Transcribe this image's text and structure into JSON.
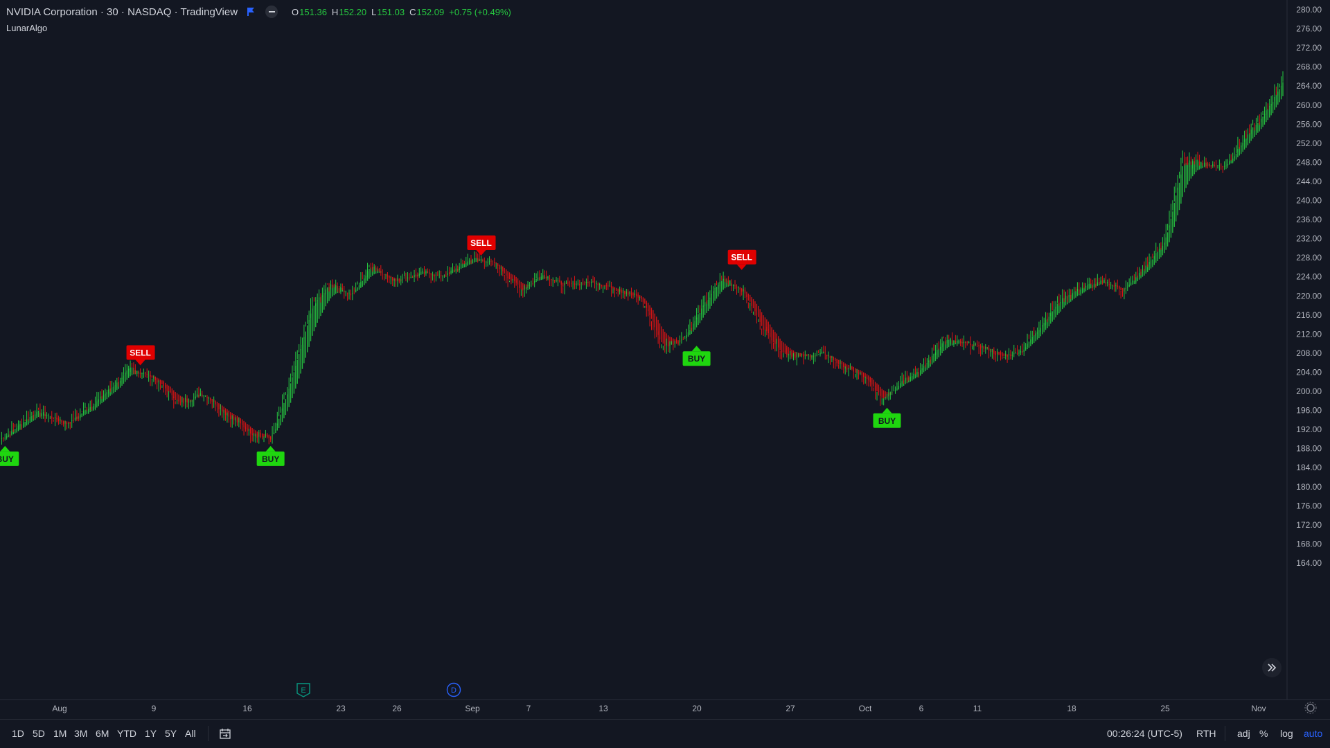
{
  "header": {
    "title": "NVIDIA Corporation · 30 · NASDAQ · TradingView",
    "ohlc": [
      {
        "k": "O",
        "v": "151.36"
      },
      {
        "k": "H",
        "v": "152.20"
      },
      {
        "k": "L",
        "v": "151.03"
      },
      {
        "k": "C",
        "v": "152.09"
      },
      {
        "k": "",
        "v": "+0.75 (+0.49%)"
      }
    ]
  },
  "indicator_label": "LunarAlgo",
  "colors": {
    "background": "#131722",
    "up": "#26c940",
    "down": "#e01414",
    "buy_label": "#1fd60f",
    "sell_label": "#e00000",
    "accent": "#2962ff"
  },
  "chart_data": {
    "type": "line",
    "title": "",
    "ylim": [
      162,
      281
    ],
    "y_ticks": [
      "280.00",
      "276.00",
      "272.00",
      "268.00",
      "264.00",
      "260.00",
      "256.00",
      "252.00",
      "248.00",
      "244.00",
      "240.00",
      "236.00",
      "232.00",
      "228.00",
      "224.00",
      "220.00",
      "216.00",
      "212.00",
      "208.00",
      "204.00",
      "200.00",
      "196.00",
      "192.00",
      "188.00",
      "184.00",
      "180.00",
      "176.00",
      "172.00",
      "168.00",
      "164.00"
    ],
    "x_ticks": [
      "Aug",
      "9",
      "16",
      "23",
      "26",
      "Sep",
      "7",
      "13",
      "20",
      "27",
      "Oct",
      "6",
      "11",
      "18",
      "25",
      "Nov"
    ],
    "price_path": [
      [
        0,
        190
      ],
      [
        7,
        196
      ],
      [
        13,
        193
      ],
      [
        20,
        199
      ],
      [
        26,
        205
      ],
      [
        30,
        203
      ],
      [
        36,
        197
      ],
      [
        40,
        200
      ],
      [
        45,
        195
      ],
      [
        50,
        191
      ],
      [
        54,
        190
      ],
      [
        58,
        203
      ],
      [
        62,
        218
      ],
      [
        66,
        223
      ],
      [
        70,
        220
      ],
      [
        74,
        227
      ],
      [
        78,
        223
      ],
      [
        84,
        225
      ],
      [
        88,
        224
      ],
      [
        94,
        228
      ],
      [
        98,
        227
      ],
      [
        104,
        221
      ],
      [
        108,
        225
      ],
      [
        112,
        222
      ],
      [
        118,
        223
      ],
      [
        124,
        221
      ],
      [
        128,
        219
      ],
      [
        132,
        209
      ],
      [
        136,
        211
      ],
      [
        140,
        218
      ],
      [
        144,
        224
      ],
      [
        148,
        221
      ],
      [
        152,
        213
      ],
      [
        156,
        208
      ],
      [
        160,
        207
      ],
      [
        164,
        208
      ],
      [
        168,
        205
      ],
      [
        172,
        203
      ],
      [
        176,
        198
      ],
      [
        180,
        203
      ],
      [
        184,
        205
      ],
      [
        188,
        211
      ],
      [
        192,
        210
      ],
      [
        196,
        209
      ],
      [
        200,
        207
      ],
      [
        204,
        209
      ],
      [
        208,
        215
      ],
      [
        212,
        220
      ],
      [
        216,
        222
      ],
      [
        220,
        223
      ],
      [
        224,
        221
      ],
      [
        228,
        226
      ],
      [
        232,
        231
      ],
      [
        236,
        249
      ],
      [
        240,
        248
      ],
      [
        244,
        247
      ],
      [
        248,
        253
      ],
      [
        252,
        258
      ],
      [
        256,
        266
      ]
    ],
    "signals": [
      {
        "label": "BUY",
        "x": 1,
        "y": 190
      },
      {
        "label": "SELL",
        "x": 28,
        "y": 204
      },
      {
        "label": "BUY",
        "x": 54,
        "y": 190
      },
      {
        "label": "SELL",
        "x": 96,
        "y": 227
      },
      {
        "label": "BUY",
        "x": 139,
        "y": 211
      },
      {
        "label": "SELL",
        "x": 148,
        "y": 224
      },
      {
        "label": "BUY",
        "x": 177,
        "y": 198
      }
    ],
    "events": [
      {
        "label": "E",
        "x": 54,
        "color": "#089981"
      },
      {
        "label": "D",
        "x": 81,
        "color": "#2962ff"
      }
    ]
  },
  "bottom": {
    "ranges": [
      "1D",
      "5D",
      "1M",
      "3M",
      "6M",
      "YTD",
      "1Y",
      "5Y",
      "All"
    ],
    "time": "00:26:24 (UTC-5)",
    "session": "RTH",
    "adj": "adj",
    "pct": "%",
    "log": "log",
    "auto": "auto"
  }
}
